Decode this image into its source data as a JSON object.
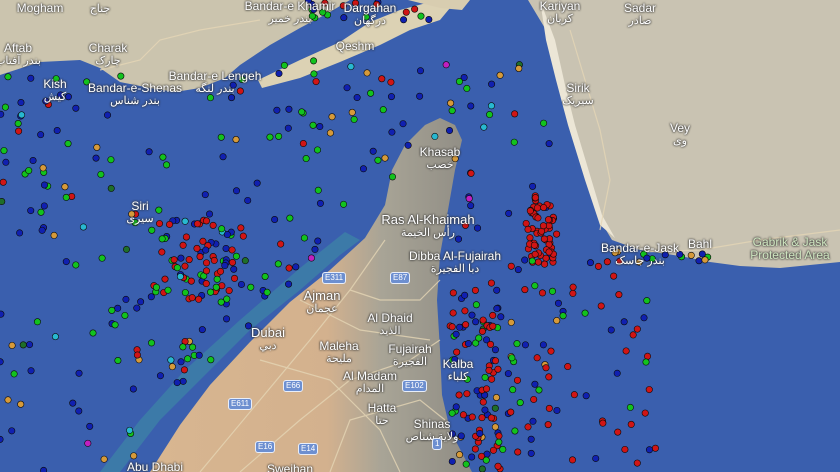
{
  "map": {
    "colors": {
      "sea": "#3a5fae",
      "shallow": "#3f7fa8",
      "desert": "#d9b994",
      "mountain": "#a9a596",
      "iran_land": "#cfc8b3",
      "road": "#e7d9bb"
    },
    "ship_marker_colors": {
      "tanker": "#d01515",
      "cargo": "#12c21e",
      "passenger": "#1020b0",
      "tug": "#28b8d0",
      "fishing": "#d69a3a",
      "pleasure": "#c020c0",
      "unknown": "#1f6e2a"
    },
    "places": [
      {
        "id": "mogham",
        "name": "Mogham",
        "ar": ""
      },
      {
        "id": "janah",
        "name": "",
        "ar": "جناح"
      },
      {
        "id": "aftab",
        "name": "Aftab",
        "ar": "بندر آفتاب"
      },
      {
        "id": "charak",
        "name": "Charak",
        "ar": "چارک"
      },
      {
        "id": "kish",
        "name": "Kish",
        "ar": "کیش"
      },
      {
        "id": "shenas",
        "name": "Bandar-e-Shenas",
        "ar": "بندر شناس"
      },
      {
        "id": "lengeh",
        "name": "Bandar-e Lengeh",
        "ar": "بندر لنگه"
      },
      {
        "id": "khamir",
        "name": "Bandar-e Khamir",
        "ar": "بندر خمیر"
      },
      {
        "id": "dargahan",
        "name": "Dargahan",
        "ar": "درگهان"
      },
      {
        "id": "qeshm",
        "name": "Qeshm",
        "ar": ""
      },
      {
        "id": "kariyan",
        "name": "Kariyan",
        "ar": "کریان"
      },
      {
        "id": "sadar",
        "name": "Sadar",
        "ar": "صادر"
      },
      {
        "id": "sirik",
        "name": "Sirik",
        "ar": "سیریک"
      },
      {
        "id": "vey",
        "name": "Vey",
        "ar": "وی"
      },
      {
        "id": "khasab",
        "name": "Khasab",
        "ar": "خصب"
      },
      {
        "id": "siri",
        "name": "Siri",
        "ar": "سیری"
      },
      {
        "id": "rak",
        "name": "Ras Al-Khaimah",
        "ar": "رأس الخيمة"
      },
      {
        "id": "dibba",
        "name": "Dibba Al-Fujairah",
        "ar": "دبا الفجيرة"
      },
      {
        "id": "ajman",
        "name": "Ajman",
        "ar": "عجمان"
      },
      {
        "id": "dubai",
        "name": "Dubai",
        "ar": "دبي"
      },
      {
        "id": "dhaid",
        "name": "Al Dhaid",
        "ar": "الذيد"
      },
      {
        "id": "maleha",
        "name": "Maleha",
        "ar": "مليحة"
      },
      {
        "id": "fujairah",
        "name": "Fujairah",
        "ar": "الفجيرة"
      },
      {
        "id": "kalba",
        "name": "Kalba",
        "ar": "كلباء"
      },
      {
        "id": "madam",
        "name": "Al Madam",
        "ar": "المدام"
      },
      {
        "id": "hatta",
        "name": "Hatta",
        "ar": "حتا"
      },
      {
        "id": "shinas",
        "name": "Shinas",
        "ar": "ولاية شناص"
      },
      {
        "id": "jask",
        "name": "Bandar-e-Jask",
        "ar": "بندر جاسک"
      },
      {
        "id": "bahl",
        "name": "Bahl",
        "ar": ""
      },
      {
        "id": "abudhabi",
        "name": "Abu Dhabi",
        "ar": ""
      },
      {
        "id": "sweihan",
        "name": "Sweihan",
        "ar": ""
      },
      {
        "id": "gabrik",
        "name": "Gabrik & Jask Protected Area",
        "ar": ""
      }
    ],
    "road_shields": [
      "E311",
      "E87",
      "E66",
      "E611",
      "E102",
      "E16",
      "E14",
      "1"
    ]
  }
}
